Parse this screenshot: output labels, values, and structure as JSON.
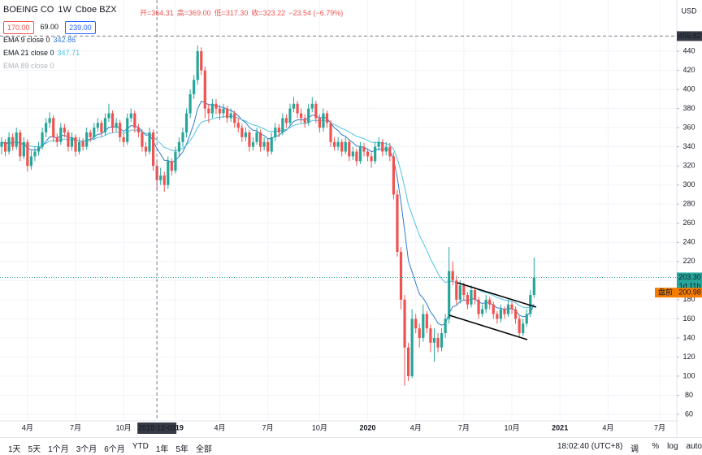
{
  "chart_data": {
    "type": "candlestick",
    "symbol": "BOEING CO",
    "interval": "1W",
    "exchange": "Cboe BZX",
    "currency": "USD",
    "legend_ohlc": [
      "开=364.31",
      "高=369.00",
      "低=317.30",
      "收=323.22",
      "−23.54 (−6.79%)"
    ],
    "order_buttons": [
      "170.00",
      "69.00",
      "239.00"
    ],
    "up_color": "#26a69a",
    "down_color": "#ef5350",
    "indicators": [
      {
        "name": "EMA 9 close 0",
        "period": 9,
        "color": "#2e7bcf",
        "value": 342.86,
        "visible": true
      },
      {
        "name": "EMA 21 close 0",
        "period": 21,
        "color": "#4fc3e0",
        "value": 347.71,
        "visible": true
      },
      {
        "name": "EMA 89 close 0",
        "visible": false
      }
    ],
    "xlim": [
      -0.44,
      182.6
    ],
    "xticks": [
      {
        "value": 7,
        "label": "4月"
      },
      {
        "value": 20,
        "label": "7月"
      },
      {
        "value": 33,
        "label": "10月"
      },
      {
        "value": 47,
        "label": "2019"
      },
      {
        "value": 59,
        "label": "4月"
      },
      {
        "value": 72,
        "label": "7月"
      },
      {
        "value": 86,
        "label": "10月"
      },
      {
        "value": 99,
        "label": "2020"
      },
      {
        "value": 112,
        "label": "4月"
      },
      {
        "value": 125,
        "label": "7月"
      },
      {
        "value": 138,
        "label": "10月"
      },
      {
        "value": 151,
        "label": "2021"
      },
      {
        "value": 164,
        "label": "4月"
      },
      {
        "value": 178,
        "label": "7月"
      }
    ],
    "ylim": [
      53.2,
      493.6
    ],
    "yticks": [
      60,
      80,
      100,
      120,
      140,
      160,
      180,
      200,
      220,
      240,
      260,
      280,
      300,
      320,
      340,
      360,
      380,
      400,
      420,
      440
    ],
    "grid": true,
    "hline": {
      "value": 455.82,
      "label": "455.82"
    },
    "last_price": {
      "value": 203.3,
      "label": "203.30",
      "countdown": "1d 11h"
    },
    "premarket": {
      "tag": "盘前",
      "value": 200.98,
      "label": "200.98"
    },
    "crosshair": {
      "x": 42,
      "label": "2018-12-03"
    },
    "candles": [
      [
        340,
        350,
        332,
        345
      ],
      [
        345,
        348,
        330,
        335
      ],
      [
        335,
        355,
        332,
        350
      ],
      [
        350,
        354,
        336,
        340
      ],
      [
        340,
        360,
        337,
        355
      ],
      [
        355,
        358,
        325,
        330
      ],
      [
        330,
        350,
        327,
        345
      ],
      [
        345,
        348,
        314,
        320
      ],
      [
        320,
        336,
        316,
        330
      ],
      [
        330,
        340,
        325,
        335
      ],
      [
        335,
        345,
        331,
        340
      ],
      [
        340,
        360,
        337,
        355
      ],
      [
        355,
        370,
        350,
        365
      ],
      [
        365,
        376,
        360,
        370
      ],
      [
        370,
        373,
        345,
        350
      ],
      [
        350,
        354,
        340,
        345
      ],
      [
        345,
        365,
        342,
        360
      ],
      [
        360,
        364,
        350,
        355
      ],
      [
        355,
        358,
        335,
        340
      ],
      [
        340,
        355,
        336,
        350
      ],
      [
        350,
        353,
        330,
        335
      ],
      [
        335,
        350,
        332,
        345
      ],
      [
        345,
        349,
        336,
        340
      ],
      [
        340,
        360,
        337,
        355
      ],
      [
        355,
        358,
        345,
        350
      ],
      [
        350,
        365,
        347,
        360
      ],
      [
        360,
        370,
        356,
        365
      ],
      [
        365,
        368,
        350,
        355
      ],
      [
        355,
        375,
        352,
        370
      ],
      [
        370,
        385,
        366,
        375
      ],
      [
        375,
        378,
        355,
        360
      ],
      [
        360,
        370,
        356,
        365
      ],
      [
        365,
        368,
        345,
        350
      ],
      [
        350,
        354,
        340,
        345
      ],
      [
        345,
        375,
        342,
        370
      ],
      [
        370,
        380,
        366,
        375
      ],
      [
        375,
        378,
        355,
        360
      ],
      [
        360,
        364,
        350,
        355
      ],
      [
        355,
        358,
        335,
        340
      ],
      [
        340,
        345,
        330,
        335
      ],
      [
        335,
        360,
        332,
        355
      ],
      [
        355,
        358,
        315,
        320
      ],
      [
        320,
        325,
        295,
        305
      ],
      [
        305,
        318,
        300,
        310
      ],
      [
        310,
        314,
        293,
        300
      ],
      [
        300,
        330,
        296,
        325
      ],
      [
        325,
        328,
        310,
        315
      ],
      [
        315,
        340,
        312,
        335
      ],
      [
        335,
        350,
        330,
        345
      ],
      [
        345,
        360,
        340,
        355
      ],
      [
        355,
        380,
        350,
        375
      ],
      [
        375,
        400,
        370,
        395
      ],
      [
        395,
        415,
        390,
        410
      ],
      [
        410,
        446,
        405,
        440
      ],
      [
        440,
        444,
        415,
        420
      ],
      [
        420,
        424,
        370,
        380
      ],
      [
        380,
        385,
        365,
        375
      ],
      [
        375,
        390,
        370,
        385
      ],
      [
        385,
        390,
        374,
        380
      ],
      [
        380,
        384,
        368,
        375
      ],
      [
        375,
        385,
        370,
        380
      ],
      [
        380,
        383,
        365,
        370
      ],
      [
        370,
        380,
        366,
        375
      ],
      [
        375,
        378,
        360,
        365
      ],
      [
        365,
        370,
        355,
        360
      ],
      [
        360,
        364,
        345,
        350
      ],
      [
        350,
        360,
        346,
        355
      ],
      [
        355,
        358,
        335,
        340
      ],
      [
        340,
        350,
        336,
        345
      ],
      [
        345,
        360,
        342,
        355
      ],
      [
        355,
        358,
        335,
        340
      ],
      [
        340,
        350,
        336,
        345
      ],
      [
        345,
        348,
        330,
        335
      ],
      [
        335,
        355,
        332,
        350
      ],
      [
        350,
        365,
        346,
        360
      ],
      [
        360,
        364,
        350,
        355
      ],
      [
        355,
        375,
        352,
        370
      ],
      [
        370,
        374,
        360,
        365
      ],
      [
        365,
        385,
        362,
        380
      ],
      [
        380,
        392,
        376,
        385
      ],
      [
        385,
        388,
        370,
        375
      ],
      [
        375,
        380,
        365,
        370
      ],
      [
        370,
        374,
        360,
        365
      ],
      [
        365,
        385,
        362,
        380
      ],
      [
        380,
        392,
        376,
        385
      ],
      [
        385,
        388,
        365,
        370
      ],
      [
        370,
        374,
        355,
        360
      ],
      [
        360,
        380,
        356,
        375
      ],
      [
        375,
        378,
        360,
        365
      ],
      [
        365,
        368,
        340,
        345
      ],
      [
        345,
        350,
        336,
        340
      ],
      [
        340,
        350,
        336,
        345
      ],
      [
        345,
        348,
        330,
        335
      ],
      [
        335,
        350,
        332,
        345
      ],
      [
        345,
        348,
        325,
        330
      ],
      [
        330,
        340,
        326,
        335
      ],
      [
        335,
        338,
        320,
        325
      ],
      [
        325,
        345,
        322,
        340
      ],
      [
        340,
        344,
        330,
        335
      ],
      [
        335,
        338,
        325,
        330
      ],
      [
        330,
        334,
        318,
        325
      ],
      [
        325,
        345,
        322,
        340
      ],
      [
        340,
        350,
        336,
        345
      ],
      [
        345,
        348,
        330,
        335
      ],
      [
        335,
        345,
        331,
        340
      ],
      [
        340,
        344,
        325,
        330
      ],
      [
        330,
        334,
        285,
        290
      ],
      [
        290,
        295,
        225,
        230
      ],
      [
        230,
        235,
        170,
        180
      ],
      [
        180,
        185,
        90,
        130
      ],
      [
        130,
        135,
        95,
        100
      ],
      [
        100,
        170,
        98,
        160
      ],
      [
        160,
        165,
        145,
        150
      ],
      [
        150,
        155,
        130,
        140
      ],
      [
        140,
        175,
        136,
        165
      ],
      [
        165,
        168,
        145,
        150
      ],
      [
        150,
        154,
        125,
        135
      ],
      [
        135,
        150,
        115,
        140
      ],
      [
        140,
        145,
        125,
        130
      ],
      [
        130,
        150,
        126,
        145
      ],
      [
        145,
        165,
        140,
        160
      ],
      [
        160,
        235,
        155,
        210
      ],
      [
        210,
        220,
        195,
        200
      ],
      [
        200,
        205,
        175,
        180
      ],
      [
        180,
        200,
        176,
        195
      ],
      [
        195,
        198,
        180,
        185
      ],
      [
        185,
        188,
        170,
        175
      ],
      [
        175,
        195,
        172,
        190
      ],
      [
        190,
        193,
        175,
        180
      ],
      [
        180,
        183,
        160,
        165
      ],
      [
        165,
        175,
        162,
        170
      ],
      [
        170,
        185,
        166,
        180
      ],
      [
        180,
        183,
        170,
        175
      ],
      [
        175,
        178,
        160,
        165
      ],
      [
        165,
        168,
        155,
        160
      ],
      [
        160,
        175,
        156,
        170
      ],
      [
        170,
        173,
        160,
        165
      ],
      [
        165,
        180,
        162,
        175
      ],
      [
        175,
        178,
        165,
        170
      ],
      [
        170,
        173,
        155,
        160
      ],
      [
        160,
        163,
        140,
        145
      ],
      [
        145,
        160,
        142,
        155
      ],
      [
        155,
        170,
        152,
        165
      ],
      [
        165,
        190,
        162,
        185
      ],
      [
        185,
        224,
        182,
        203.3
      ]
    ],
    "range_buttons": [
      "1天",
      "5天",
      "1个月",
      "3个月",
      "6个月",
      "YTD",
      "1年",
      "5年",
      "全部"
    ],
    "clock": "18:02:40 (UTC+8)",
    "toolbar_right": [
      "调整",
      "%",
      "log",
      "auto"
    ]
  }
}
